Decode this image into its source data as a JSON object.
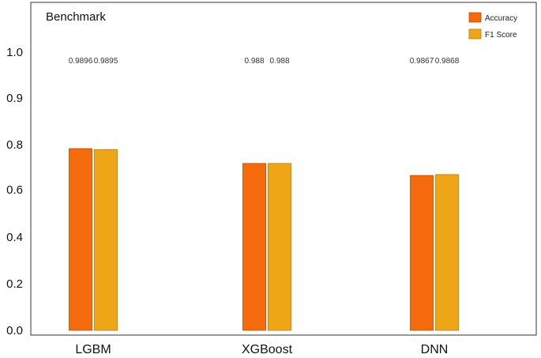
{
  "chart_data": {
    "type": "bar",
    "title": "Benchmark",
    "xlabel": "",
    "ylabel": "",
    "categories": [
      "LGBM",
      "XGBoost",
      "DNN"
    ],
    "series": [
      {
        "name": "Accuracy",
        "color": "#f56a0c",
        "values": [
          0.9896,
          0.988,
          0.9867
        ],
        "labels": [
          "0.9896",
          "0.988",
          "0.9867"
        ]
      },
      {
        "name": "F1 Score",
        "color": "#eea617",
        "values": [
          0.9895,
          0.988,
          0.9868
        ],
        "labels": [
          "0.9895",
          "0.988",
          "0.9868"
        ]
      }
    ],
    "ylim": [
      0,
      1.0
    ],
    "yticks": [
      "0.0",
      "0.2",
      "0.4",
      "0.6",
      "0.8",
      "0.9",
      "1.0"
    ],
    "ytick_values": [
      0.0,
      0.2,
      0.4,
      0.6,
      0.8,
      0.9,
      1.0
    ],
    "grid": false,
    "legend_position": "top-right"
  }
}
